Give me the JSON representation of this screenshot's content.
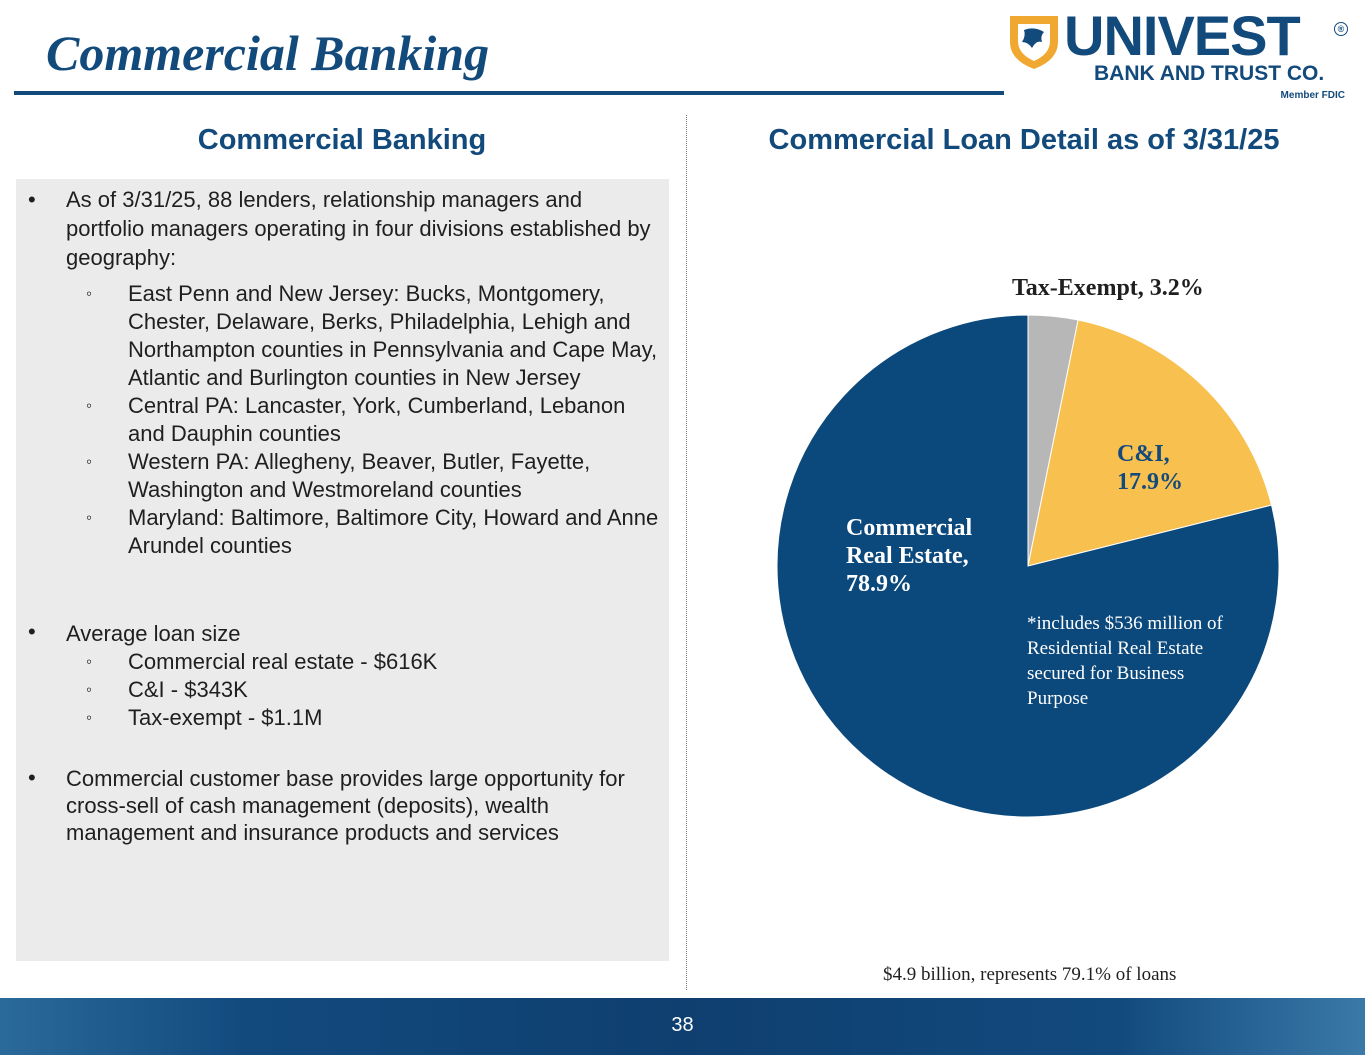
{
  "header": {
    "title": "Commercial Banking",
    "logo": {
      "name": "UNIVEST",
      "subtitle": "BANK AND TRUST CO.",
      "registered": "®",
      "member": "Member FDIC",
      "brand_color": "#134a7c",
      "accent_color": "#f0a830"
    }
  },
  "left": {
    "heading": "Commercial Banking",
    "bullet_symbol": "•",
    "sub_symbol": "◦",
    "bullets": [
      {
        "text": "As of 3/31/25, 88 lenders, relationship managers and portfolio managers operating in four divisions established by geography:",
        "subs": [
          "East Penn and New Jersey: Bucks, Montgomery, Chester, Delaware, Berks, Philadelphia, Lehigh and Northampton counties in Pennsylvania and Cape May, Atlantic and Burlington counties in New Jersey",
          "Central PA:  Lancaster, York, Cumberland, Lebanon and Dauphin counties",
          "Western PA: Allegheny, Beaver, Butler, Fayette, Washington and Westmoreland counties",
          "Maryland: Baltimore, Baltimore City, Howard and Anne Arundel counties"
        ]
      },
      {
        "text": "Average loan size",
        "subs": [
          "Commercial real estate - $616K",
          "C&I - $343K",
          "Tax-exempt - $1.1M"
        ]
      },
      {
        "text": "Commercial customer base provides large opportunity for cross-sell of cash management (deposits), wealth management and insurance products and services",
        "subs": []
      }
    ]
  },
  "right": {
    "heading": "Commercial Loan Detail as of 3/31/25",
    "footnote": "$4.9 billion, represents 79.1% of loans"
  },
  "chart_data": {
    "type": "pie",
    "title": "Commercial Loan Detail as of 3/31/25",
    "slices": [
      {
        "label": "Tax-Exempt",
        "value": 3.2,
        "display": "Tax-Exempt, 3.2%",
        "color": "#b7b7b7"
      },
      {
        "label": "C&I",
        "value": 17.9,
        "display": "C&I,\n17.9%",
        "color": "#f8c04f"
      },
      {
        "label": "Commercial Real Estate",
        "value": 78.9,
        "display": "Commercial\nReal Estate,\n78.9%",
        "color": "#0b487b"
      }
    ],
    "start": "12 o'clock",
    "direction": "clockwise",
    "annotation": "*includes $536 million of Residential Real Estate secured for Business Purpose"
  },
  "footer": {
    "page_number": "38"
  }
}
